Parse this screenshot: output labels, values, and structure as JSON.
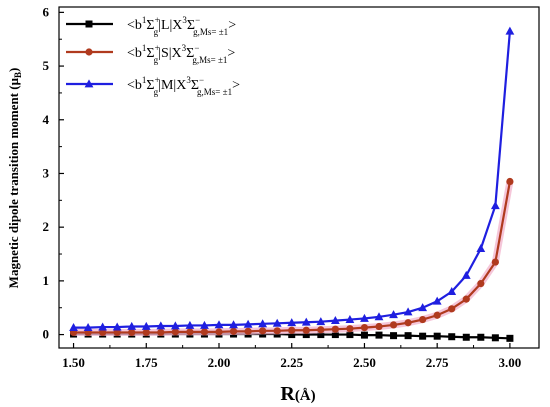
{
  "chart_data": {
    "type": "line",
    "xlabel": "R(Å)",
    "ylabel": "Magnetic dipole transition moment (μB)",
    "xlim": [
      1.45,
      3.1
    ],
    "ylim": [
      -0.25,
      6.1
    ],
    "xticks": [
      "1.50",
      "1.75",
      "2.00",
      "2.25",
      "2.50",
      "2.75",
      "3.00"
    ],
    "yticks": [
      "0",
      "1",
      "2",
      "3",
      "4",
      "5",
      "6"
    ],
    "x": [
      1.5,
      1.55,
      1.6,
      1.65,
      1.7,
      1.75,
      1.8,
      1.85,
      1.9,
      1.95,
      2.0,
      2.05,
      2.1,
      2.15,
      2.2,
      2.25,
      2.3,
      2.35,
      2.4,
      2.45,
      2.5,
      2.55,
      2.6,
      2.65,
      2.7,
      2.75,
      2.8,
      2.85,
      2.9,
      2.95,
      3.0
    ],
    "legend_position": "top-left",
    "series": [
      {
        "name": "<b1Σg+|L|X3Σg,Ms=±1−>",
        "color": "#000000",
        "marker": "square",
        "values": [
          0.01,
          0.01,
          0.01,
          0.01,
          0.01,
          0.01,
          0.01,
          0.01,
          0.01,
          0.01,
          0.01,
          0.01,
          0.01,
          0.01,
          0.01,
          0.0,
          0.0,
          0.0,
          0.0,
          0.0,
          -0.01,
          -0.01,
          -0.02,
          -0.02,
          -0.03,
          -0.03,
          -0.04,
          -0.05,
          -0.05,
          -0.06,
          -0.07
        ]
      },
      {
        "name": "<b1Σg+|S|X3Σg,Ms=±1−>",
        "color": "#b03a1e",
        "marker": "circle",
        "values": [
          0.04,
          0.04,
          0.04,
          0.04,
          0.04,
          0.04,
          0.04,
          0.05,
          0.05,
          0.05,
          0.05,
          0.06,
          0.06,
          0.07,
          0.07,
          0.08,
          0.08,
          0.09,
          0.1,
          0.11,
          0.13,
          0.15,
          0.18,
          0.22,
          0.28,
          0.36,
          0.48,
          0.66,
          0.95,
          1.35,
          2.85
        ]
      },
      {
        "name": "<b1Σg+|M|X3Σg,Ms=±1−>",
        "color": "#1f1fe0",
        "marker": "triangle",
        "values": [
          0.13,
          0.13,
          0.14,
          0.14,
          0.15,
          0.15,
          0.16,
          0.16,
          0.17,
          0.17,
          0.18,
          0.18,
          0.19,
          0.2,
          0.21,
          0.22,
          0.23,
          0.24,
          0.26,
          0.28,
          0.3,
          0.33,
          0.37,
          0.42,
          0.5,
          0.62,
          0.8,
          1.1,
          1.6,
          2.4,
          5.65
        ]
      }
    ]
  },
  "legend": {
    "items": [
      {
        "prefix": "<b",
        "sup1": "1",
        "sigma": "Σ",
        "sup2": "+",
        "sub1": "g",
        "op": "|L|X",
        "sup3": "3",
        "sigma2": "Σ",
        "sup4": "−",
        "sub2": "g,Ms= ±1",
        "suffix": ">"
      },
      {
        "prefix": "<b",
        "sup1": "1",
        "sigma": "Σ",
        "sup2": "+",
        "sub1": "g",
        "op": "|S|X",
        "sup3": "3",
        "sigma2": "Σ",
        "sup4": "−",
        "sub2": "g,Ms= ±1",
        "suffix": ">"
      },
      {
        "prefix": "<b",
        "sup1": "1",
        "sigma": "Σ",
        "sup2": "+",
        "sub1": "g",
        "op": "|M|X",
        "sup3": "3",
        "sigma2": "Σ",
        "sup4": "−",
        "sub2": "g,Ms= ±1",
        "suffix": ">"
      }
    ]
  },
  "axis_titles": {
    "x_main": "R",
    "x_unit": "(Å)",
    "y_main": "Magnetic dipole transition moment (μ",
    "y_sub": "B",
    "y_close": ")"
  }
}
